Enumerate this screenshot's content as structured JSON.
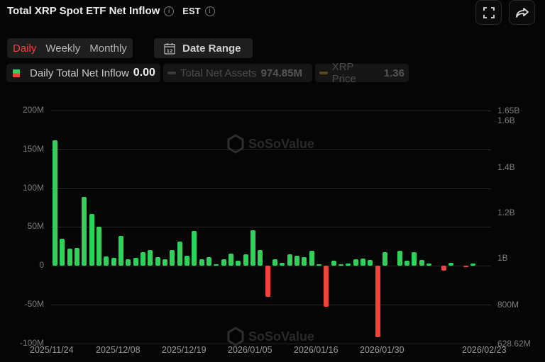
{
  "header": {
    "title": "Total XRP Spot ETF Net Inflow",
    "timezone": "EST",
    "fullscreen_icon": "fullscreen-icon",
    "share_icon": "share-icon"
  },
  "period_tabs": [
    {
      "label": "Daily",
      "active": true
    },
    {
      "label": "Weekly",
      "active": false
    },
    {
      "label": "Monthly",
      "active": false
    }
  ],
  "date_range": {
    "label": "Date Range",
    "icon": "calendar-icon",
    "icon_text": "12"
  },
  "legend": [
    {
      "label": "Daily Total Net Inflow",
      "value": "0.00",
      "active": true
    },
    {
      "label": "Total Net Assets",
      "value": "974.85M",
      "active": false
    },
    {
      "label": "XRP Price",
      "value": "1.36",
      "active": false
    }
  ],
  "watermark": {
    "brand": "SoSoValue",
    "site": "sosovalue.com"
  },
  "colors": {
    "positive": "#2fd15a",
    "negative": "#f0433a",
    "active_tab": "#f04438"
  },
  "chart_data": {
    "type": "bar",
    "title": "Total XRP Spot ETF Net Inflow",
    "xlabel": "",
    "ylabel": "Daily Total Net Inflow",
    "y_unit": "M",
    "ylim": [
      -100,
      200
    ],
    "y_ticks": [
      "200M",
      "150M",
      "100M",
      "50M",
      "0",
      "-50M",
      "-100M"
    ],
    "y2_ticks": [
      "1.65B",
      "1.6B",
      "1.4B",
      "1.2B",
      "1B",
      "800M",
      "628.62M"
    ],
    "x_ticks": [
      "2025/11/24",
      "2025/12/08",
      "2025/12/19",
      "2026/01/05",
      "2026/01/16",
      "2026/01/30",
      "2026/02/23"
    ],
    "grid": true,
    "legend_position": "top",
    "values": [
      162,
      35,
      22,
      23,
      89,
      67,
      50,
      12,
      10,
      38,
      8,
      10,
      17,
      20,
      11,
      8,
      20,
      31,
      13,
      45,
      8,
      11,
      0.3,
      8,
      16,
      6,
      15,
      46,
      20,
      -40,
      8,
      4,
      15,
      13,
      11,
      19,
      0.5,
      -53,
      6,
      2,
      3,
      8,
      9,
      7,
      -92,
      17,
      0,
      19,
      6,
      17,
      7,
      3,
      0,
      -6,
      4,
      0,
      -2,
      3
    ]
  }
}
